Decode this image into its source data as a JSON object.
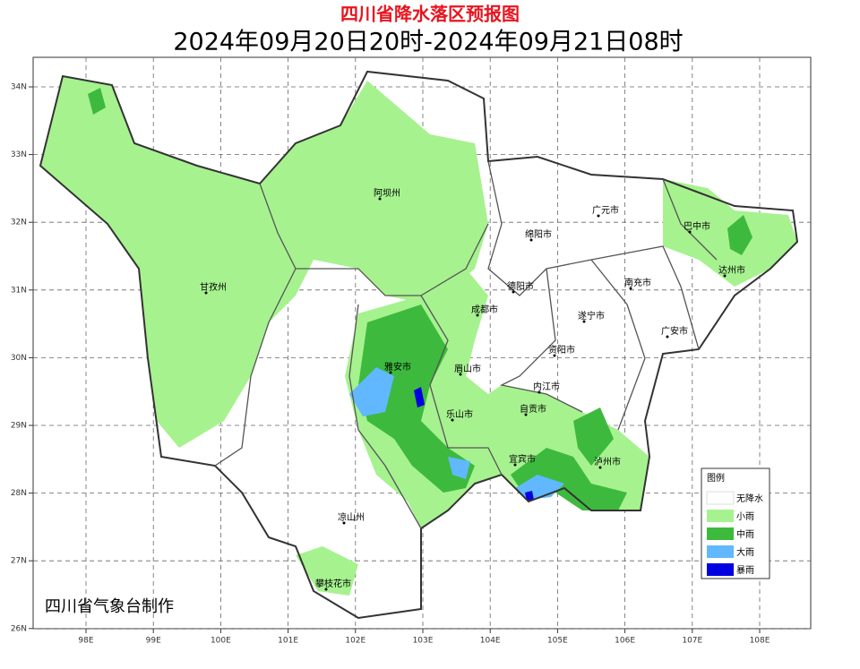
{
  "header": {
    "title": "四川省降水落区预报图",
    "subtitle": "2024年09月20日20时-2024年09月21日08时"
  },
  "axes": {
    "xticks": [
      {
        "value": 98,
        "label": "98E"
      },
      {
        "value": 99,
        "label": "99E"
      },
      {
        "value": 100,
        "label": "100E"
      },
      {
        "value": 101,
        "label": "101E"
      },
      {
        "value": 102,
        "label": "102E"
      },
      {
        "value": 103,
        "label": "103E"
      },
      {
        "value": 104,
        "label": "104E"
      },
      {
        "value": 105,
        "label": "105E"
      },
      {
        "value": 106,
        "label": "106E"
      },
      {
        "value": 107,
        "label": "107E"
      },
      {
        "value": 108,
        "label": "108E"
      }
    ],
    "yticks": [
      {
        "value": 26,
        "label": "26N"
      },
      {
        "value": 27,
        "label": "27N"
      },
      {
        "value": 28,
        "label": "28N"
      },
      {
        "value": 29,
        "label": "29N"
      },
      {
        "value": 30,
        "label": "30N"
      },
      {
        "value": 31,
        "label": "31N"
      },
      {
        "value": 32,
        "label": "32N"
      },
      {
        "value": 33,
        "label": "33N"
      },
      {
        "value": 34,
        "label": "34N"
      }
    ]
  },
  "places": [
    "阿坝州",
    "甘孜州",
    "凉山州",
    "攀枝花市",
    "雅安市",
    "眉山市",
    "乐山市",
    "成都市",
    "德阳市",
    "绵阳市",
    "广元市",
    "巴中市",
    "达州市",
    "南充市",
    "遂宁市",
    "广安市",
    "资阳市",
    "内江市",
    "自贡市",
    "宜宾市",
    "泸州市"
  ],
  "legend": {
    "title": "图例",
    "items": [
      {
        "label": "无降水",
        "color": "#ffffff"
      },
      {
        "label": "小雨",
        "color": "#a6f28f"
      },
      {
        "label": "中雨",
        "color": "#3dba3d"
      },
      {
        "label": "大雨",
        "color": "#61b8ff"
      },
      {
        "label": "暴雨",
        "color": "#0000e1"
      }
    ]
  },
  "credit": "四川省气象台制作"
}
